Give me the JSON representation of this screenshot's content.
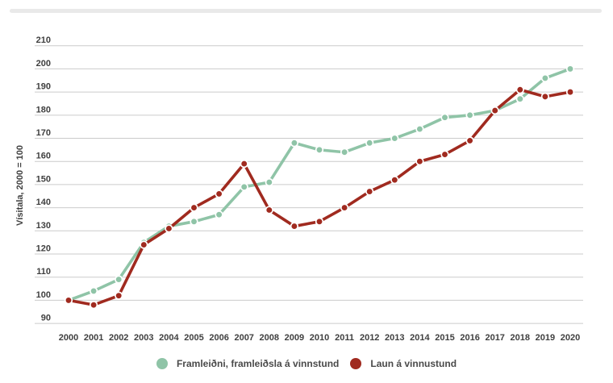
{
  "scrollbar": {
    "present": true,
    "color": "#e9e9e9"
  },
  "chart_data": {
    "type": "line",
    "title": "",
    "ylabel": "Vísitala, 2000 = 100",
    "xlabel": "",
    "x": [
      "2000",
      "2001",
      "2002",
      "2003",
      "2004",
      "2005",
      "2006",
      "2007",
      "2008",
      "2009",
      "2010",
      "2011",
      "2012",
      "2013",
      "2014",
      "2015",
      "2016",
      "2017",
      "2018",
      "2019",
      "2020"
    ],
    "series": [
      {
        "name": "Framleiðni, framleiðsla á vinnstund",
        "color": "#8fc4a7",
        "marker": "circle",
        "values": [
          100,
          104,
          109,
          125,
          132,
          134,
          137,
          149,
          151,
          168,
          165,
          164,
          168,
          170,
          174,
          179,
          180,
          182,
          187,
          196,
          200
        ]
      },
      {
        "name": "Laun á vinnustund",
        "color": "#a02a1f",
        "marker": "circle",
        "values": [
          100,
          98,
          102,
          124,
          131,
          140,
          146,
          159,
          139,
          132,
          134,
          140,
          147,
          152,
          160,
          163,
          169,
          182,
          191,
          188,
          190
        ]
      }
    ],
    "ylim": [
      90,
      210
    ],
    "ytick_step": 10,
    "grid": true,
    "gridline_color": "#cbcbcb",
    "text_color": "#3f3f3f",
    "legend_position": "bottom",
    "background": "#ffffff"
  },
  "legend": {
    "items": [
      {
        "label": "Framleiðni, framleiðsla á vinnstund",
        "color": "#8fc4a7"
      },
      {
        "label": "Laun á vinnustund",
        "color": "#a02a1f"
      }
    ]
  }
}
